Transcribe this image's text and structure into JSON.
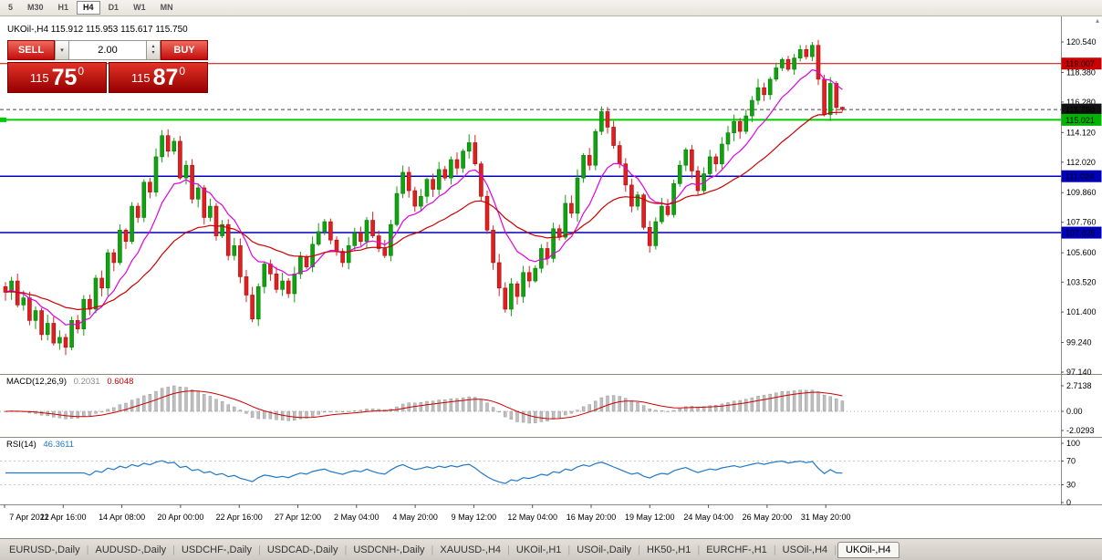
{
  "toolbar": {
    "timeframes": [
      "5",
      "M30",
      "H1",
      "H4",
      "D1",
      "W1",
      "MN"
    ],
    "active": "H4"
  },
  "chart": {
    "symbol_header": "UKOil-,H4 115.912 115.953 115.617 115.750",
    "trade_panel": {
      "sell_label": "SELL",
      "buy_label": "BUY",
      "lot_value": "2.00",
      "sell_tile": {
        "prefix": "115",
        "big": "75",
        "sup": "0"
      },
      "buy_tile": {
        "prefix": "115",
        "big": "87",
        "sup": "0"
      }
    },
    "price_axis": {
      "ticks": [
        "120.540",
        "118.380",
        "116.280",
        "114.120",
        "112.020",
        "109.860",
        "107.760",
        "105.600",
        "103.520",
        "101.400",
        "99.240",
        "97.140"
      ],
      "badges": [
        {
          "text": "119.007",
          "color": "#cc0000"
        },
        {
          "text": "115.750",
          "color": "#111111"
        },
        {
          "text": "115.021",
          "color": "#00b400"
        },
        {
          "text": "111.024",
          "color": "#0000bb"
        },
        {
          "text": "107.026",
          "color": "#0000bb"
        }
      ]
    }
  },
  "indicators": {
    "macd": {
      "name": "MACD(12,26,9)",
      "value_main": "0.2031",
      "value_signal": "0.6048",
      "axis_labels": [
        "2.7138",
        "0.00",
        "-2.0293"
      ],
      "histogram_color": "#bfbfbf",
      "signal_color": "#cc0000"
    },
    "rsi": {
      "name": "RSI(14)",
      "value": "46.3611",
      "axis_labels": [
        "100",
        "70",
        "30",
        "0"
      ],
      "axis_values": [
        100,
        70,
        30,
        0
      ],
      "levels": [
        70,
        30
      ],
      "line_color": "#1f78c8"
    }
  },
  "time_axis": {
    "labels": [
      "7 Apr 2022",
      "11 Apr 16:00",
      "14 Apr 08:00",
      "20 Apr 00:00",
      "22 Apr 16:00",
      "27 Apr 12:00",
      "2 May 04:00",
      "4 May 20:00",
      "9 May 12:00",
      "12 May 04:00",
      "16 May 20:00",
      "19 May 12:00",
      "24 May 04:00",
      "26 May 20:00",
      "31 May 20:00"
    ]
  },
  "tabs": {
    "items": [
      "EURUSD-,Daily",
      "AUDUSD-,Daily",
      "USDCHF-,Daily",
      "USDCAD-,Daily",
      "USDCNH-,Daily",
      "XAUUSD-,H4",
      "UKOil-,H1",
      "USOil-,Daily",
      "HK50-,H1",
      "EURCHF-,H1",
      "USOil-,H4",
      "UKOil-,H4"
    ],
    "active_index": 11
  },
  "chart_data": {
    "type": "candlestick",
    "symbol": "UKOil-",
    "timeframe": "H4",
    "ohlc_header": {
      "open": "115.912",
      "high": "115.953",
      "low": "115.617",
      "close": "115.750"
    },
    "ylim": [
      97.14,
      122.4
    ],
    "closes": [
      102.8,
      103.6,
      101.9,
      102.4,
      100.8,
      101.5,
      99.8,
      100.6,
      99.2,
      99.6,
      98.9,
      100.8,
      100.2,
      102.3,
      101.6,
      103.8,
      103.1,
      105.6,
      104.9,
      107.2,
      106.4,
      108.9,
      108.1,
      110.6,
      109.9,
      112.4,
      113.9,
      112.8,
      113.5,
      110.9,
      111.8,
      109.4,
      110.2,
      108.1,
      108.9,
      106.8,
      107.6,
      105.4,
      106.1,
      103.9,
      102.6,
      100.9,
      103.2,
      104.8,
      104.1,
      103.0,
      103.6,
      102.7,
      104.1,
      105.3,
      104.6,
      106.2,
      107.1,
      107.8,
      106.5,
      105.7,
      104.9,
      106.1,
      107.0,
      106.4,
      107.9,
      106.8,
      105.9,
      105.4,
      107.6,
      109.8,
      111.3,
      110.0,
      108.9,
      109.6,
      110.8,
      110.1,
      111.5,
      110.9,
      112.2,
      111.6,
      112.8,
      113.4,
      111.9,
      109.6,
      107.2,
      104.9,
      103.1,
      101.6,
      103.4,
      102.5,
      104.2,
      103.6,
      104.5,
      105.9,
      105.2,
      107.3,
      106.7,
      109.1,
      108.4,
      110.9,
      112.5,
      111.8,
      114.2,
      115.6,
      114.5,
      113.2,
      111.9,
      110.4,
      108.9,
      109.7,
      107.4,
      106.1,
      107.8,
      108.9,
      108.3,
      110.5,
      111.8,
      112.9,
      111.4,
      110.0,
      111.2,
      112.4,
      111.9,
      113.3,
      114.1,
      114.9,
      114.2,
      115.3,
      116.4,
      117.3,
      116.8,
      117.9,
      118.7,
      119.3,
      118.6,
      119.4,
      120.0,
      119.5,
      120.3,
      117.9,
      115.4,
      117.6,
      115.9,
      115.75
    ],
    "last_candle": {
      "o": 115.912,
      "h": 115.953,
      "l": 115.617,
      "c": 115.75
    },
    "extreme_overrides": {
      "10": {
        "l": 98.35
      },
      "83": {
        "l": 101.35
      },
      "107": {
        "l": 105.6
      },
      "134": {
        "h": 120.54
      }
    },
    "hlines": [
      {
        "price": 119.007,
        "color": "#cc0000",
        "width": 1,
        "style": "solid"
      },
      {
        "price": 115.021,
        "color": "#00cc00",
        "width": 2,
        "style": "solid"
      },
      {
        "price": 115.75,
        "color": "#444444",
        "width": 1,
        "style": "dashed"
      },
      {
        "price": 111.024,
        "color": "#0000bb",
        "width": 1.5,
        "style": "solid"
      },
      {
        "price": 107.026,
        "color": "#0000bb",
        "width": 1.5,
        "style": "solid"
      }
    ],
    "ma_lines": [
      {
        "period": 10,
        "color": "#e000e0"
      },
      {
        "period": 30,
        "color": "#cc0000"
      }
    ]
  }
}
